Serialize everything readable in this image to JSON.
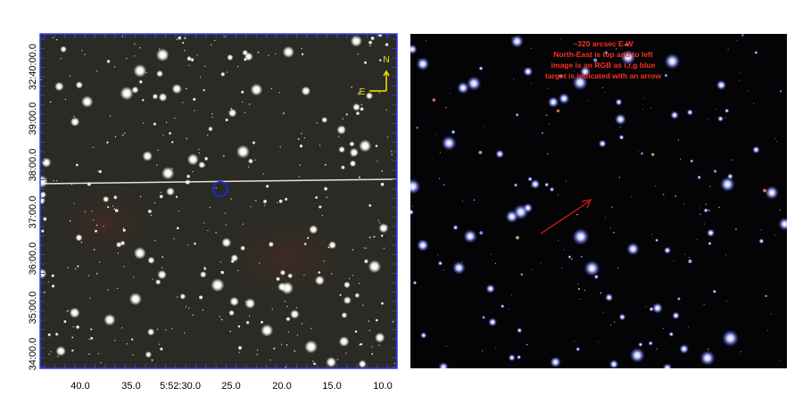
{
  "left_panel": {
    "y_axis_labels": [
      "32:40:00.0",
      "39:00.0",
      "38:00.0",
      "37:00.0",
      "36:00.0",
      "35:00.0",
      "34:00.0"
    ],
    "x_axis_labels": [
      "40.0",
      "35.0",
      "5:52:30.0",
      "25.0",
      "20.0",
      "15.0",
      "10.0"
    ],
    "compass": {
      "north": "N",
      "east": "E"
    }
  },
  "right_panel": {
    "annotation": [
      "~320 arcsec E-W",
      "North-East is top and to left",
      "image is an RGB as i,r,g blue",
      "target is indicated with an arrow"
    ]
  }
}
